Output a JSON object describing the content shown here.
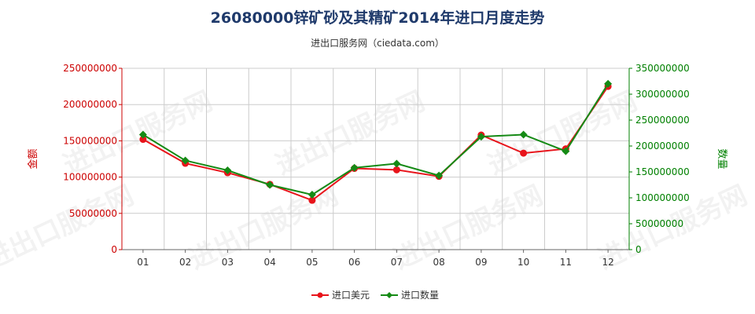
{
  "title": "26080000锌矿砂及其精矿2014年进口月度走势",
  "subtitle": "进出口服务网（ciedata.com）",
  "watermark": "进出口服务网",
  "colors": {
    "left_axis": "#cc0000",
    "right_axis": "#008000",
    "series_usd": "#e8141b",
    "series_qty": "#158a15",
    "grid": "#cccccc",
    "title": "#1f3a6b"
  },
  "chart_data": {
    "type": "line",
    "title": "26080000锌矿砂及其精矿2014年进口月度走势",
    "subtitle": "进出口服务网（ciedata.com）",
    "categories": [
      "01",
      "02",
      "03",
      "04",
      "05",
      "06",
      "07",
      "08",
      "09",
      "10",
      "11",
      "12"
    ],
    "y_left": {
      "label": "金额",
      "range": [
        0,
        250000000
      ],
      "ticks": [
        "0",
        "50000000",
        "100000000",
        "150000000",
        "200000000",
        "250000000"
      ]
    },
    "y_right": {
      "label": "数量",
      "range": [
        0,
        350000000
      ],
      "ticks": [
        "0",
        "50000000",
        "100000000",
        "150000000",
        "200000000",
        "250000000",
        "300000000",
        "350000000"
      ]
    },
    "series": [
      {
        "name": "进口美元",
        "axis": "left",
        "values": [
          152000000,
          119000000,
          106000000,
          90000000,
          68000000,
          112000000,
          110000000,
          101000000,
          158000000,
          133000000,
          139000000,
          225000000
        ]
      },
      {
        "name": "进口数量",
        "axis": "right",
        "values": [
          222000000,
          172000000,
          153000000,
          125000000,
          106000000,
          158000000,
          166000000,
          143000000,
          218000000,
          222000000,
          190000000,
          320000000
        ]
      }
    ],
    "grid": true,
    "legend": "bottom-center"
  }
}
